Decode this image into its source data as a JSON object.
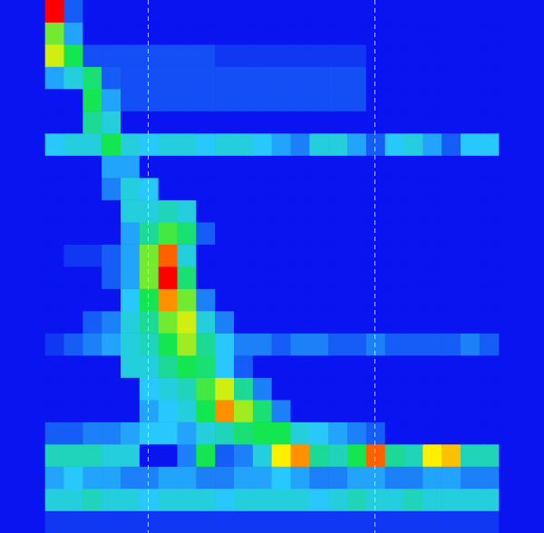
{
  "chart_data": {
    "type": "heatmap",
    "xlim": [
      0,
      24
    ],
    "ylim": [
      0,
      24
    ],
    "zlim": [
      0,
      1
    ],
    "tick_labels": false,
    "grid": false,
    "vlines": [
      5.4,
      17.4
    ],
    "cells": [
      [
        1,
        0.1,
        0,
        0,
        0,
        0,
        0,
        0,
        0,
        0,
        0,
        0,
        0,
        0,
        0,
        0,
        0,
        0,
        0,
        0,
        0,
        0,
        0,
        0
      ],
      [
        0.6,
        0.2,
        0,
        0,
        0,
        0,
        0,
        0,
        0,
        0,
        0,
        0,
        0,
        0,
        0,
        0,
        0,
        0,
        0,
        0,
        0,
        0,
        0,
        0
      ],
      [
        0.7,
        0.5,
        0.08,
        0.08,
        0.08,
        0.08,
        0.08,
        0.08,
        0.08,
        0.05,
        0.05,
        0.05,
        0.05,
        0.05,
        0.05,
        0.05,
        0.05,
        0,
        0,
        0,
        0,
        0,
        0,
        0
      ],
      [
        0.2,
        0.3,
        0.45,
        0.1,
        0.08,
        0.08,
        0.08,
        0.08,
        0.08,
        0.08,
        0.08,
        0.08,
        0.08,
        0.08,
        0.08,
        0.08,
        0.08,
        0,
        0,
        0,
        0,
        0,
        0,
        0
      ],
      [
        0,
        0,
        0.5,
        0.2,
        0.08,
        0.08,
        0.08,
        0.08,
        0.08,
        0.08,
        0.08,
        0.08,
        0.08,
        0.08,
        0.08,
        0.08,
        0.08,
        0,
        0,
        0,
        0,
        0,
        0,
        0
      ],
      [
        0,
        0,
        0.4,
        0.3,
        0,
        0,
        0,
        0,
        0,
        0,
        0,
        0,
        0,
        0,
        0,
        0,
        0,
        0,
        0,
        0,
        0,
        0,
        0,
        0
      ],
      [
        0.25,
        0.3,
        0.3,
        0.5,
        0.3,
        0.25,
        0.3,
        0.3,
        0.25,
        0.3,
        0.3,
        0.25,
        0.2,
        0.15,
        0.3,
        0.3,
        0.2,
        0.1,
        0.25,
        0.3,
        0.2,
        0.1,
        0.25,
        0.25
      ],
      [
        0,
        0,
        0,
        0.2,
        0.2,
        0,
        0,
        0,
        0,
        0,
        0,
        0,
        0,
        0,
        0,
        0,
        0,
        0,
        0,
        0,
        0,
        0,
        0,
        0
      ],
      [
        0,
        0,
        0,
        0.15,
        0.3,
        0.25,
        0,
        0,
        0,
        0,
        0,
        0,
        0,
        0,
        0,
        0,
        0,
        0,
        0,
        0,
        0,
        0,
        0,
        0
      ],
      [
        0,
        0,
        0,
        0,
        0.3,
        0.3,
        0.35,
        0.3,
        0,
        0,
        0,
        0,
        0,
        0,
        0,
        0,
        0,
        0,
        0,
        0,
        0,
        0,
        0,
        0
      ],
      [
        0,
        0,
        0,
        0,
        0.2,
        0.4,
        0.55,
        0.45,
        0.1,
        0,
        0,
        0,
        0,
        0,
        0,
        0,
        0,
        0,
        0,
        0,
        0,
        0,
        0,
        0
      ],
      [
        0,
        0.05,
        0.05,
        0.1,
        0.2,
        0.6,
        0.9,
        0.3,
        0,
        0,
        0,
        0,
        0,
        0,
        0,
        0,
        0,
        0,
        0,
        0,
        0,
        0,
        0,
        0
      ],
      [
        0,
        0,
        0,
        0.1,
        0.2,
        0.6,
        1,
        0.45,
        0,
        0,
        0,
        0,
        0,
        0,
        0,
        0,
        0,
        0,
        0,
        0,
        0,
        0,
        0,
        0
      ],
      [
        0,
        0,
        0,
        0,
        0.25,
        0.5,
        0.85,
        0.6,
        0.15,
        0,
        0,
        0,
        0,
        0,
        0,
        0,
        0,
        0,
        0,
        0,
        0,
        0,
        0,
        0
      ],
      [
        0,
        0,
        0.1,
        0.15,
        0.3,
        0.4,
        0.6,
        0.7,
        0.3,
        0.15,
        0,
        0,
        0,
        0,
        0,
        0,
        0,
        0,
        0,
        0,
        0,
        0,
        0,
        0
      ],
      [
        0.05,
        0.1,
        0.15,
        0.2,
        0.3,
        0.35,
        0.5,
        0.65,
        0.4,
        0.25,
        0.15,
        0.15,
        0.1,
        0.15,
        0.15,
        0.1,
        0.1,
        0.15,
        0.1,
        0.1,
        0.1,
        0.1,
        0.15,
        0.1
      ],
      [
        0,
        0,
        0,
        0,
        0.3,
        0.3,
        0.4,
        0.5,
        0.45,
        0.25,
        0.1,
        0,
        0,
        0,
        0,
        0,
        0,
        0,
        0,
        0,
        0,
        0,
        0,
        0
      ],
      [
        0,
        0,
        0,
        0,
        0,
        0.25,
        0.3,
        0.35,
        0.55,
        0.7,
        0.4,
        0.15,
        0,
        0,
        0,
        0,
        0,
        0,
        0,
        0,
        0,
        0,
        0,
        0
      ],
      [
        0,
        0,
        0,
        0,
        0,
        0.2,
        0.25,
        0.3,
        0.5,
        0.85,
        0.65,
        0.45,
        0.15,
        0,
        0,
        0,
        0,
        0,
        0,
        0,
        0,
        0,
        0,
        0
      ],
      [
        0.1,
        0.1,
        0.15,
        0.15,
        0.2,
        0.25,
        0.25,
        0.2,
        0.3,
        0.35,
        0.45,
        0.5,
        0.5,
        0.3,
        0.25,
        0.2,
        0.15,
        0.1,
        0,
        0,
        0,
        0,
        0,
        0
      ],
      [
        0.35,
        0.35,
        0.35,
        0.3,
        0.3,
        0,
        0,
        0.15,
        0.5,
        0.1,
        0.15,
        0.3,
        0.75,
        0.85,
        0.4,
        0.35,
        0.5,
        0.9,
        0.4,
        0.35,
        0.75,
        0.8,
        0.35,
        0.35
      ],
      [
        0.2,
        0.25,
        0.2,
        0.2,
        0.15,
        0.15,
        0.2,
        0.2,
        0.15,
        0.15,
        0.2,
        0.2,
        0.25,
        0.2,
        0.15,
        0.15,
        0.2,
        0.2,
        0.15,
        0.15,
        0.2,
        0.2,
        0.15,
        0.15
      ],
      [
        0.3,
        0.3,
        0.35,
        0.3,
        0.3,
        0.25,
        0.3,
        0.3,
        0.3,
        0.25,
        0.3,
        0.3,
        0.3,
        0.3,
        0.25,
        0.3,
        0.35,
        0.3,
        0.3,
        0.35,
        0.3,
        0.3,
        0.3,
        0.3
      ],
      [
        0.05,
        0.05,
        0.05,
        0.05,
        0.05,
        0.05,
        0.05,
        0.05,
        0.05,
        0.05,
        0.05,
        0.05,
        0.05,
        0.05,
        0.05,
        0.05,
        0.05,
        0.05,
        0.05,
        0.05,
        0.05,
        0.05,
        0.05,
        0.05
      ]
    ]
  }
}
